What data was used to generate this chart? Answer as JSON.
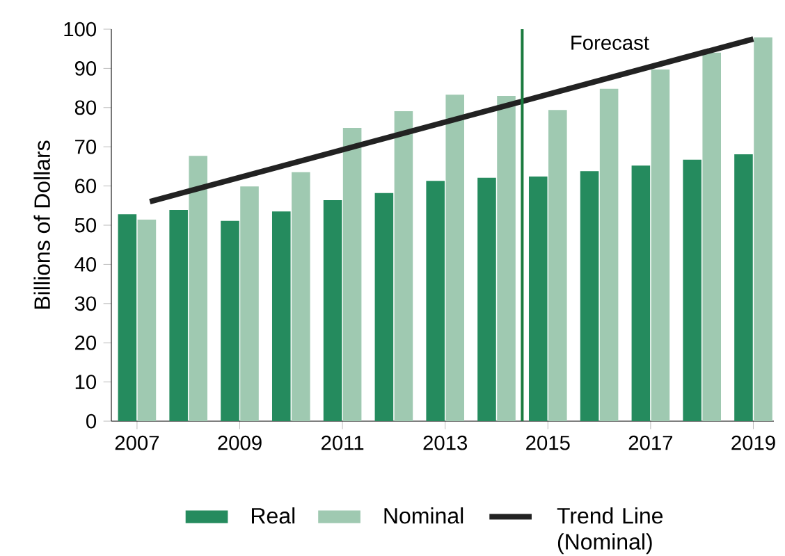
{
  "chart_data": {
    "type": "bar",
    "ylabel": "Billions of Dollars",
    "x": [
      2007,
      2008,
      2009,
      2010,
      2011,
      2012,
      2013,
      2014,
      2015,
      2016,
      2017,
      2018,
      2019
    ],
    "xlim": [
      2006.5,
      2019.4
    ],
    "xticks": [
      2007,
      2009,
      2011,
      2013,
      2015,
      2017,
      2019
    ],
    "ylim": [
      0,
      100
    ],
    "yticks": [
      0,
      10,
      20,
      30,
      40,
      50,
      60,
      70,
      80,
      90,
      100
    ],
    "series": [
      {
        "name": "Real",
        "color": "#258b5e",
        "values": [
          52.8,
          53.9,
          51.1,
          53.5,
          56.4,
          58.2,
          61.3,
          62.1,
          62.4,
          63.8,
          65.2,
          66.7,
          68.1
        ]
      },
      {
        "name": "Nominal",
        "color": "#9fc9b1",
        "values": [
          51.4,
          67.7,
          59.9,
          63.5,
          74.8,
          79.1,
          83.3,
          83,
          79.4,
          84.8,
          89.7,
          94,
          97.9
        ]
      },
      {
        "name": "Trend Line (Nominal)",
        "type": "line",
        "color": "#222222",
        "x": [
          2007.25,
          2019
        ],
        "values": [
          56,
          97.5
        ]
      }
    ],
    "ref_lines": [
      {
        "axis": "x",
        "value": 2014.5,
        "label": "Forecast",
        "color": "#1a7a3e"
      }
    ],
    "grid": false,
    "legend": "bottom"
  }
}
